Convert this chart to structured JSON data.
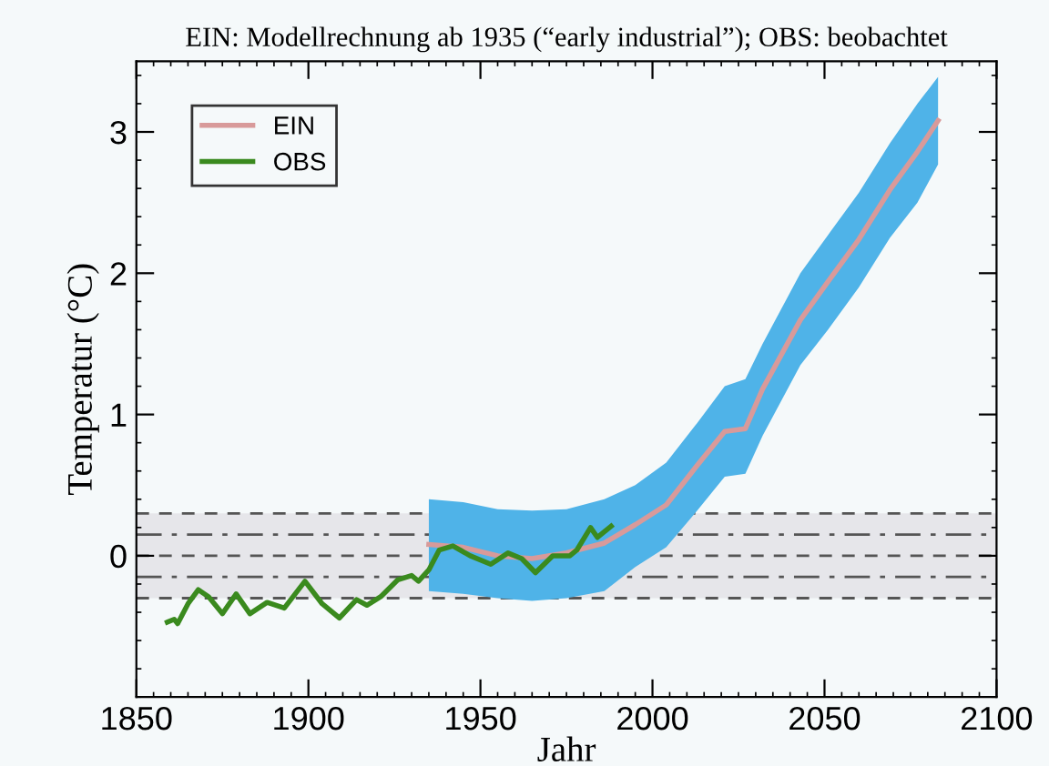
{
  "chart_data": {
    "type": "line",
    "title": "EIN: Modellrechnung ab 1935 (“early industrial”); OBS: beobachtet",
    "xlabel": "Jahr",
    "ylabel": "Temperatur (°C)",
    "xlim": [
      1850,
      2100
    ],
    "xticks": [
      1850,
      1900,
      1950,
      2000,
      2050,
      2100
    ],
    "ylim": [
      -1,
      3.5
    ],
    "yticks": [
      0,
      1,
      2,
      3
    ],
    "legend": "top left",
    "grid": false,
    "bands": [
      {
        "axis": "y",
        "from": -0.3,
        "to": 0.3,
        "color": "#e6e6ea"
      }
    ],
    "ref_lines": [
      {
        "axis": "y",
        "value": 0.3,
        "line_style": "dashed",
        "color": "#555555"
      },
      {
        "axis": "y",
        "value": 0.15,
        "line_style": "dashdot",
        "color": "#555555"
      },
      {
        "axis": "y",
        "value": 0,
        "line_style": "dashed",
        "color": "#555555"
      },
      {
        "axis": "y",
        "value": -0.15,
        "line_style": "dashdot",
        "color": "#555555"
      },
      {
        "axis": "y",
        "value": -0.3,
        "line_style": "dashed",
        "color": "#555555"
      }
    ],
    "series": [
      {
        "name": "EIN",
        "color": "#d89a9a",
        "x": [
          1935,
          1945,
          1955,
          1965,
          1975,
          1986,
          1995,
          2004,
          2013,
          2021,
          2027,
          2032,
          2043,
          2051,
          2060,
          2069,
          2077,
          2083
        ],
        "values": [
          0.08,
          0.06,
          0.0,
          -0.02,
          0.02,
          0.09,
          0.22,
          0.36,
          0.64,
          0.88,
          0.9,
          1.18,
          1.67,
          1.94,
          2.24,
          2.59,
          2.86,
          3.08
        ],
        "upper": [
          0.4,
          0.38,
          0.33,
          0.32,
          0.33,
          0.4,
          0.5,
          0.66,
          0.94,
          1.2,
          1.25,
          1.5,
          2.0,
          2.27,
          2.57,
          2.92,
          3.2,
          3.39
        ],
        "lower": [
          -0.25,
          -0.27,
          -0.3,
          -0.32,
          -0.3,
          -0.25,
          -0.08,
          0.06,
          0.32,
          0.56,
          0.58,
          0.85,
          1.35,
          1.6,
          1.9,
          2.25,
          2.5,
          2.77
        ]
      },
      {
        "name": "OBS",
        "color": "#3a8a1e",
        "x": [
          1859,
          1861,
          1862,
          1865,
          1868,
          1871,
          1875,
          1879,
          1883,
          1888,
          1893,
          1899,
          1904,
          1909,
          1914,
          1917,
          1921,
          1926,
          1930,
          1932,
          1935,
          1938,
          1942,
          1947,
          1953,
          1958,
          1962,
          1966,
          1971,
          1976,
          1978,
          1982,
          1984,
          1988
        ],
        "values": [
          -0.47,
          -0.45,
          -0.48,
          -0.34,
          -0.24,
          -0.29,
          -0.41,
          -0.27,
          -0.41,
          -0.33,
          -0.37,
          -0.18,
          -0.34,
          -0.44,
          -0.31,
          -0.35,
          -0.29,
          -0.17,
          -0.14,
          -0.18,
          -0.1,
          0.04,
          0.07,
          0.0,
          -0.06,
          0.02,
          -0.02,
          -0.12,
          0.0,
          0.0,
          0.04,
          0.2,
          0.13,
          0.21
        ]
      }
    ]
  }
}
